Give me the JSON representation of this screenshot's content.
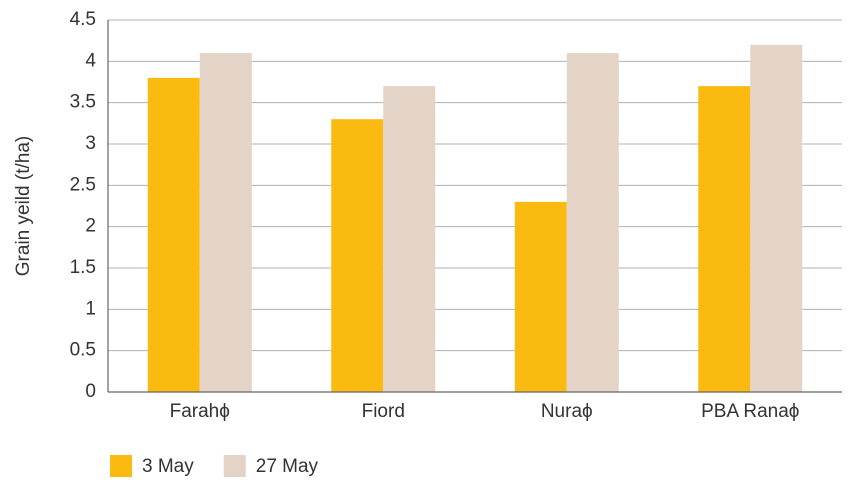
{
  "chart_data": {
    "type": "bar",
    "y_label": "Grain yeild (t/ha)",
    "categories": [
      "Farahϕ",
      "Fiord",
      "Nuraϕ",
      "PBA Ranaϕ"
    ],
    "series": [
      {
        "name": "3 May",
        "color": "#fbba10",
        "values": [
          3.8,
          3.3,
          2.3,
          3.7
        ]
      },
      {
        "name": "27 May",
        "color": "#e3d4c7",
        "values": [
          4.1,
          3.7,
          4.1,
          4.2
        ]
      }
    ],
    "ylim": [
      0,
      4.5
    ],
    "yticks": [
      0,
      0.5,
      1,
      1.5,
      2,
      2.5,
      3,
      3.5,
      4,
      4.5
    ],
    "grid": true
  }
}
